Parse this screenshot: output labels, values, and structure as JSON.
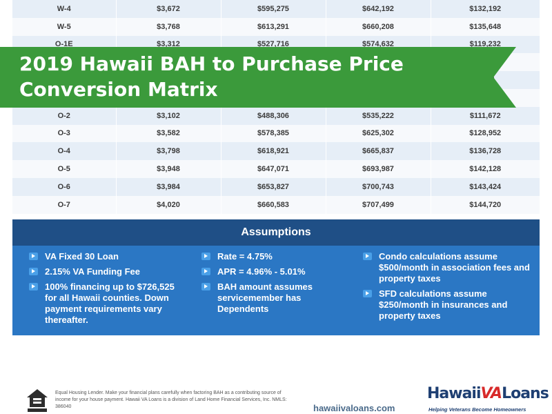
{
  "table": {
    "rows": [
      [
        "W-4",
        "$3,672",
        "$595,275",
        "$642,192",
        "$132,192"
      ],
      [
        "W-5",
        "$3,768",
        "$613,291",
        "$660,208",
        "$135,648"
      ],
      [
        "O-1E",
        "$3,312",
        "$527,716",
        "$574,632",
        "$119,232"
      ],
      [
        "",
        "",
        "",
        "",
        "...30"
      ],
      [
        "",
        "",
        "",
        "",
        "...624"
      ],
      [
        "",
        "",
        "",
        "",
        ""
      ],
      [
        "O-2",
        "$3,102",
        "$488,306",
        "$535,222",
        "$111,672"
      ],
      [
        "O-3",
        "$3,582",
        "$578,385",
        "$625,302",
        "$128,952"
      ],
      [
        "O-4",
        "$3,798",
        "$618,921",
        "$665,837",
        "$136,728"
      ],
      [
        "O-5",
        "$3,948",
        "$647,071",
        "$693,987",
        "$142,128"
      ],
      [
        "O-6",
        "$3,984",
        "$653,827",
        "$700,743",
        "$143,424"
      ],
      [
        "O-7",
        "$4,020",
        "$660,583",
        "$707,499",
        "$144,720"
      ]
    ]
  },
  "banner": {
    "line1": "2019 Hawaii BAH to Purchase Price",
    "line2": "Conversion Matrix",
    "color": "#3b9a3b"
  },
  "assumptions": {
    "title": "Assumptions",
    "col1": [
      "VA Fixed 30 Loan",
      "2.15% VA Funding Fee",
      "100% financing up to $726,525 for all Hawaii counties. Down payment requirements vary thereafter."
    ],
    "col2": [
      "Rate = 4.75%",
      "APR = 4.96% - 5.01%",
      "BAH amount assumes servicemember has Dependents"
    ],
    "col3": [
      "Condo calculations assume $500/month in association fees and property taxes",
      "SFD calculations assume $250/month in insurances and property taxes"
    ],
    "header_color": "#1f4f86",
    "body_color": "#2b77c4"
  },
  "footer": {
    "disclaimer": "Equal Housing Lender. Make your financial plans carefully when factoring BAH as a contributing source of income for your house payment. Hawaii VA Loans is a division of Land Home Financial Services, Inc. NMLS: 386040",
    "website": "hawaiivaloans.com",
    "logo_prefix": "Hawaii",
    "logo_va": "VA",
    "logo_suffix": "Loans",
    "tagline": "Helping Veterans Become Homeowners",
    "ehl_icon": "equal-housing-icon"
  }
}
